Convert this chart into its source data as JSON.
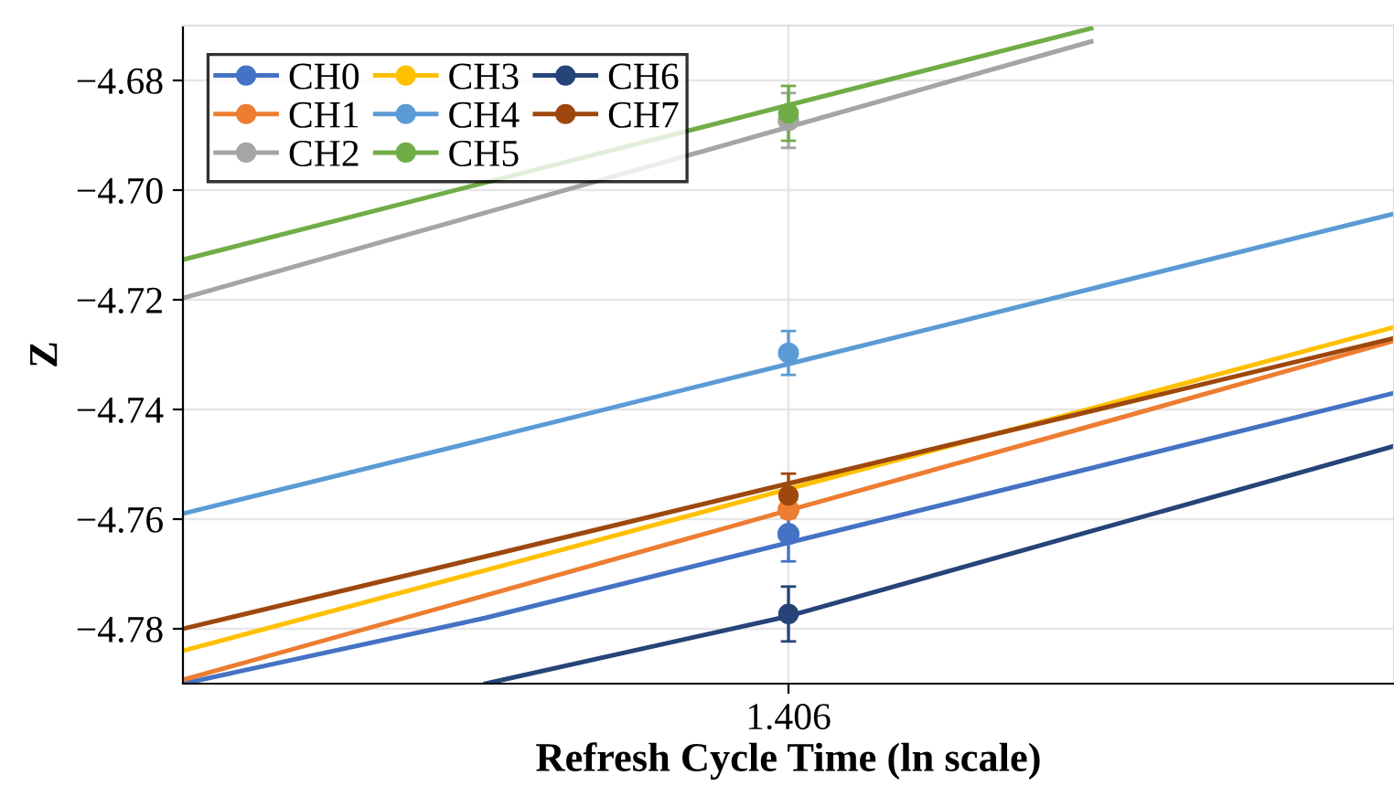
{
  "chart_data": {
    "type": "line",
    "xlabel": "Refresh Cycle Time (ln scale)",
    "ylabel": "Z",
    "categories": [
      null,
      null,
      "1.406",
      null,
      null
    ],
    "ylim": [
      -4.79,
      -4.67
    ],
    "yticks": [
      {
        "value": -4.78,
        "label": "−4.78"
      },
      {
        "value": -4.76,
        "label": "−4.76"
      },
      {
        "value": -4.74,
        "label": "−4.74"
      },
      {
        "value": -4.72,
        "label": "−4.72"
      },
      {
        "value": -4.7,
        "label": "−4.70"
      },
      {
        "value": -4.68,
        "label": "−4.68"
      }
    ],
    "grid": true,
    "legend": "top left",
    "marker": "none",
    "series": [
      {
        "color": "#4472c4",
        "values": [
          -4.79,
          -4.778,
          -4.7643,
          -4.7507,
          -4.737
        ]
      },
      {
        "color": "#ed7d31",
        "values": [
          -4.7893,
          -4.7739,
          -4.7584,
          -4.743,
          -4.7275
        ]
      },
      {
        "color": "#a5a5a5",
        "values": [
          -4.7197,
          -4.7041,
          -4.6885,
          -4.6729,
          null
        ]
      },
      {
        "color": "#ffc000",
        "values": [
          -4.784,
          -4.7693,
          -4.7545,
          -4.7398,
          -4.725
        ]
      },
      {
        "color": "#5b9bd5",
        "values": [
          -4.759,
          -4.7454,
          -4.7317,
          -4.718,
          -4.7043
        ]
      },
      {
        "color": "#70ad47",
        "values": [
          -4.7127,
          -4.6986,
          -4.6845,
          -4.6705,
          null
        ]
      },
      {
        "color": "#264478",
        "values": [
          null,
          -4.79,
          -4.7777,
          -4.7622,
          -4.7467
        ]
      },
      {
        "color": "#9e480e",
        "values": [
          -4.78,
          -4.7668,
          -4.7535,
          -4.7403,
          -4.727
        ]
      },
      {
        "name": "CH0",
        "type": "scatter",
        "marker": "circle",
        "color": "#4472c4",
        "values": [
          null,
          null,
          -4.7627,
          null,
          null
        ],
        "errors": [
          null,
          null,
          0.005,
          null,
          null
        ]
      },
      {
        "name": "CH1",
        "type": "scatter",
        "marker": "circle",
        "color": "#ed7d31",
        "values": [
          null,
          null,
          -4.7583,
          null,
          null
        ]
      },
      {
        "name": "CH2",
        "type": "scatter",
        "marker": "circle",
        "color": "#a5a5a5",
        "values": [
          null,
          null,
          -4.6873,
          null,
          null
        ],
        "errors": [
          null,
          null,
          0.005,
          null,
          null
        ]
      },
      {
        "name": "CH3",
        "type": "scatter",
        "marker": "circle",
        "color": "#ffc000",
        "values": [
          null,
          null,
          null,
          null,
          null
        ]
      },
      {
        "name": "CH4",
        "type": "scatter",
        "marker": "circle",
        "color": "#5b9bd5",
        "values": [
          null,
          null,
          -4.7297,
          null,
          null
        ],
        "errors": [
          null,
          null,
          0.004,
          null,
          null
        ]
      },
      {
        "name": "CH5",
        "type": "scatter",
        "marker": "circle",
        "color": "#70ad47",
        "values": [
          null,
          null,
          -4.686,
          null,
          null
        ],
        "errors": [
          null,
          null,
          0.005,
          null,
          null
        ]
      },
      {
        "name": "CH6",
        "type": "scatter",
        "marker": "circle",
        "color": "#264478",
        "values": [
          null,
          null,
          -4.7773,
          null,
          null
        ],
        "errors": [
          null,
          null,
          0.005,
          null,
          null
        ]
      },
      {
        "name": "CH7",
        "type": "scatter",
        "marker": "circle",
        "color": "#9e480e",
        "values": [
          null,
          null,
          -4.7557,
          null,
          null
        ],
        "errors": [
          null,
          null,
          0.004,
          null,
          null
        ]
      }
    ]
  }
}
